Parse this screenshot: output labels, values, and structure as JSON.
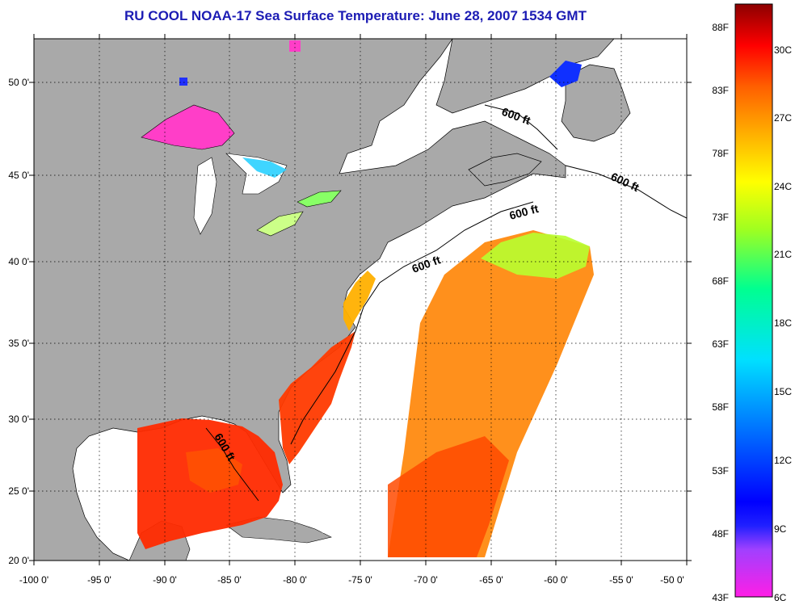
{
  "title": "RU COOL  NOAA-17  Sea Surface Temperature:  June 28, 2007 1534 GMT",
  "map": {
    "lon_range": [
      -100,
      -50
    ],
    "lat_range": [
      20,
      52.5
    ],
    "lon_ticks": [
      "-100 0'",
      "-95 0'",
      "-90 0'",
      "-85 0'",
      "-80 0'",
      "-75 0'",
      "-70 0'",
      "-65 0'",
      "-60 0'",
      "-55 0'",
      "-50 0'"
    ],
    "lat_ticks": [
      "20 0'",
      "25 0'",
      "30 0'",
      "35 0'",
      "40 0'",
      "45 0'",
      "50 0'"
    ],
    "contour_labels": [
      "600 ft",
      "600 ft",
      "600 ft",
      "600 ft",
      "600 ft"
    ],
    "colors": {
      "land": "#a9a9a9",
      "ocean_nodata": "#ffffff",
      "border": "#000000"
    }
  },
  "colorbar": {
    "fahrenheit": [
      "88F",
      "83F",
      "78F",
      "73F",
      "68F",
      "63F",
      "58F",
      "53F",
      "48F",
      "43F"
    ],
    "celsius": [
      "30C",
      "27C",
      "24C",
      "21C",
      "18C",
      "15C",
      "12C",
      "9C",
      "6C"
    ],
    "range_c": [
      6,
      32
    ]
  }
}
